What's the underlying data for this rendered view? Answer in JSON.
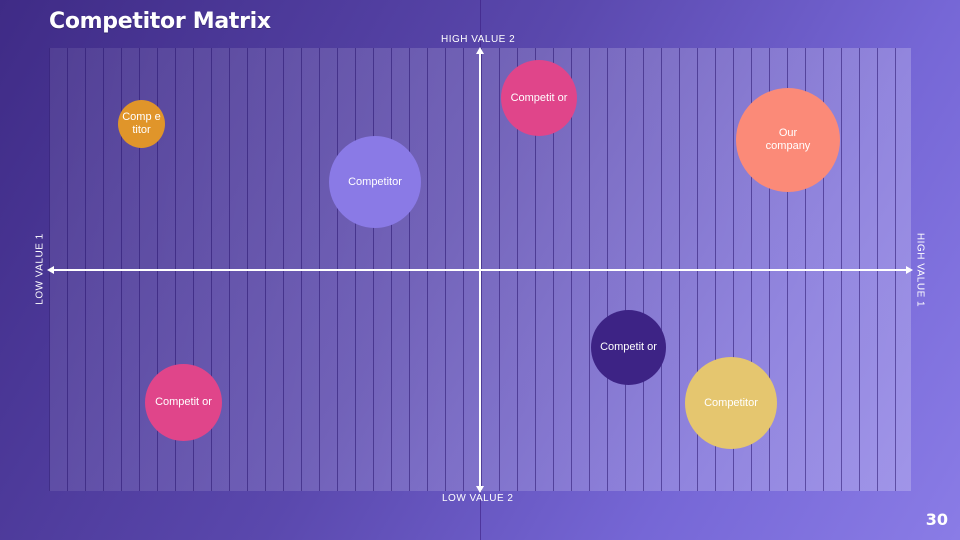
{
  "slide": {
    "title": "Competitor Matrix",
    "page_number": "30"
  },
  "axes": {
    "top": "HIGH VALUE 2",
    "bottom": "LOW VALUE 2",
    "left": "LOW VALUE 1",
    "right": "HIGH VALUE 1"
  },
  "colors": {
    "orange": "#e0952a",
    "pink": "#e0458a",
    "lavender": "#8a7ae6",
    "salmon": "#fb8a78",
    "dark_purple": "#3d2385",
    "yellow": "#e5c66f"
  },
  "bubbles": [
    {
      "label": "Comp etitor",
      "color": "#e0952a"
    },
    {
      "label": "Competit or",
      "color": "#e0458a"
    },
    {
      "label": "Competitor",
      "color": "#8a7ae6"
    },
    {
      "label": "Our company",
      "color": "#fb8a78"
    },
    {
      "label": "Competit or",
      "color": "#3d2385"
    },
    {
      "label": "Competit or",
      "color": "#e0458a"
    },
    {
      "label": "Competitor",
      "color": "#e5c66f"
    }
  ]
}
